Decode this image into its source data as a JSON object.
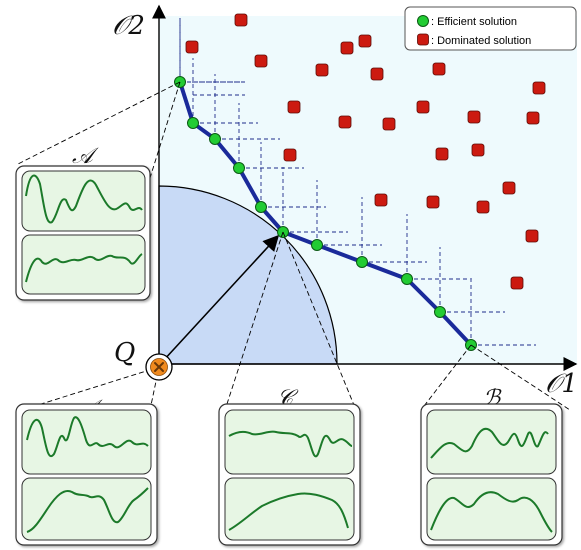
{
  "axes": {
    "x_label": "𝒪1",
    "y_label": "𝒪2",
    "origin_label": "Q"
  },
  "legend": {
    "efficient_label": ": Efficient solution",
    "dominated_label": ": Dominated solution",
    "efficient_color": "#22cc33",
    "dominated_color": "#cc1a10"
  },
  "colors": {
    "plot_background": "#eefafd",
    "front_line": "#1a2a9a",
    "quarter_disk": "#c8daf6",
    "origin_marker": "#f08a1e",
    "panel_background": "#e7f6e4",
    "panel_curve": "#1c7a2a"
  },
  "panels": [
    {
      "id": "A",
      "label": "𝒜"
    },
    {
      "id": "A2",
      "label": "𝒜"
    },
    {
      "id": "C",
      "label": "𝒞"
    },
    {
      "id": "B",
      "label": "ℬ"
    }
  ]
}
